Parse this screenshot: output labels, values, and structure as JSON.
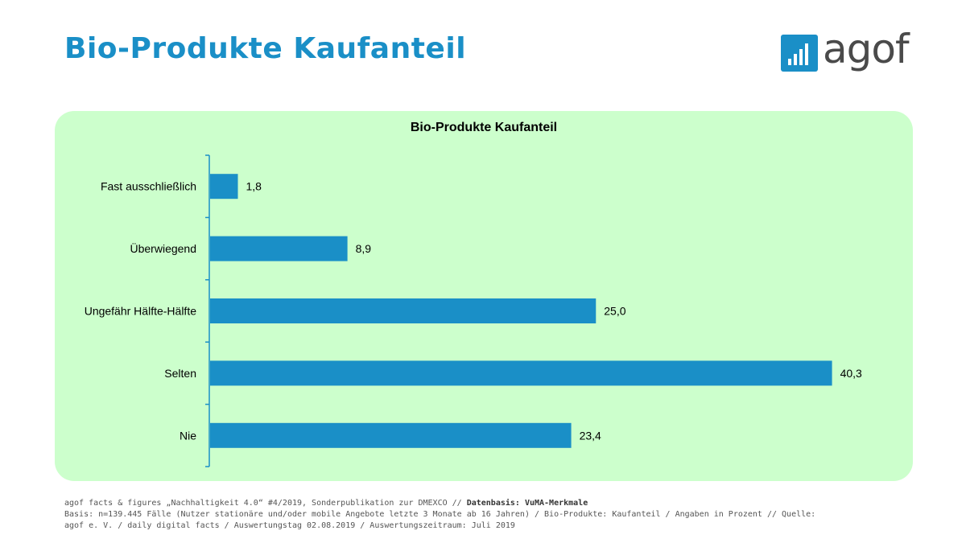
{
  "page": {
    "title": "Bio-Produkte Kaufanteil"
  },
  "logo": {
    "text": "agof",
    "color": "#1a8fc7"
  },
  "chart_data": {
    "type": "bar",
    "orientation": "horizontal",
    "title": "Bio-Produkte Kaufanteil",
    "categories": [
      "Fast ausschließlich",
      "Überwiegend",
      "Ungefähr Hälfte-Hälfte",
      "Selten",
      "Nie"
    ],
    "values": [
      1.8,
      8.9,
      25.0,
      40.3,
      23.4
    ],
    "value_labels": [
      "1,8",
      "8,9",
      "25,0",
      "40,3",
      "23,4"
    ],
    "xlim": [
      0,
      41
    ],
    "grid": false,
    "bar_color": "#1a8fc7",
    "background_color": "#ccffcc"
  },
  "footer": {
    "line1_prefix": "agof facts & figures „Nachhaltigkeit 4.0“ #4/2019, Sonderpublikation zur DMEXCO // ",
    "line1_bold": "Datenbasis: VuMA-Merkmale",
    "line2": "Basis: n=139.445 Fälle (Nutzer stationäre und/oder mobile Angebote letzte 3 Monate ab 16 Jahren) / Bio-Produkte: Kaufanteil / Angaben in Prozent // Quelle:",
    "line3": "agof e. V. / daily digital facts / Auswertungstag 02.08.2019 / Auswertungszeitraum: Juli 2019"
  }
}
